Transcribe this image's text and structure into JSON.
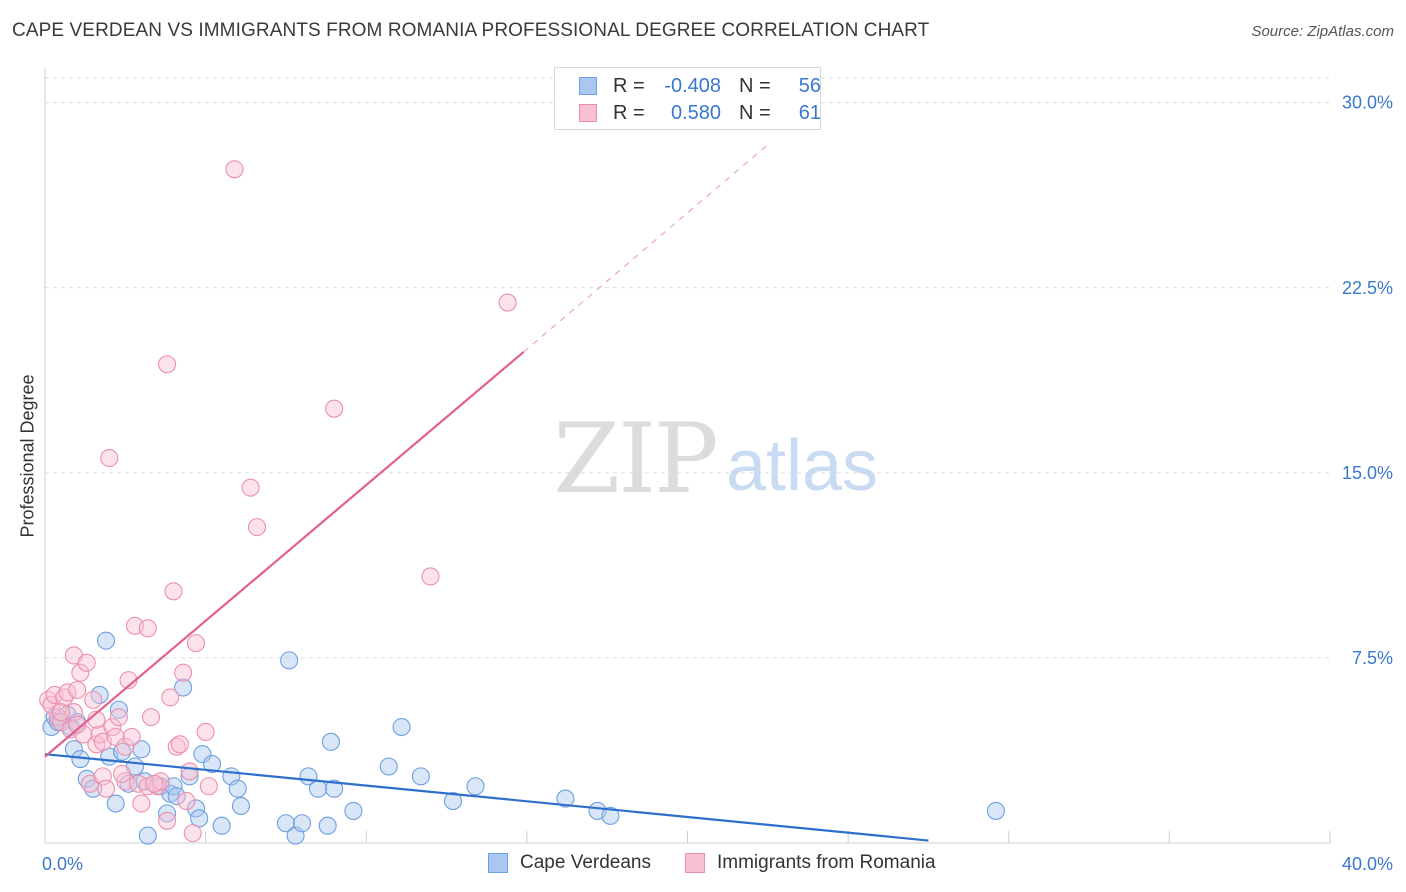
{
  "header": {
    "title": "CAPE VERDEAN VS IMMIGRANTS FROM ROMANIA PROFESSIONAL DEGREE CORRELATION CHART",
    "source": "Source: ZipAtlas.com"
  },
  "watermark": {
    "zip": "ZIP",
    "atlas": "atlas"
  },
  "stats_legend": {
    "rows": [
      {
        "r_label": "R =",
        "r_value": "-0.408",
        "n_label": "N =",
        "n_value": "56",
        "color": "#a9c7ef",
        "border": "#6e9fe0"
      },
      {
        "r_label": "R =",
        "r_value": "0.580",
        "n_label": "N =",
        "n_value": "61",
        "color": "#f8c0d2",
        "border": "#ec8fae"
      }
    ]
  },
  "chart_data": {
    "type": "scatter",
    "title": "CAPE VERDEAN VS IMMIGRANTS FROM ROMANIA PROFESSIONAL DEGREE CORRELATION CHART",
    "xlabel": "",
    "ylabel": "Professional Degree",
    "xlim": [
      0,
      40
    ],
    "ylim": [
      0,
      31
    ],
    "x_tick_labels": [
      {
        "value": 0,
        "label": "0.0%"
      },
      {
        "value": 40,
        "label": "40.0%"
      }
    ],
    "y_tick_labels": [
      {
        "value": 7.5,
        "label": "7.5%"
      },
      {
        "value": 15,
        "label": "15.0%"
      },
      {
        "value": 22.5,
        "label": "22.5%"
      },
      {
        "value": 30,
        "label": "30.0%"
      }
    ],
    "grid": true,
    "series": [
      {
        "name": "Cape Verdeans",
        "color": "#6e9fe0",
        "fill": "#a9c7ef",
        "line_color": "#2f6fcc",
        "trend": {
          "x": [
            0,
            27.5
          ],
          "y": [
            3.6,
            0.1
          ],
          "dashed_to": null
        },
        "points": [
          [
            0.2,
            4.7
          ],
          [
            0.3,
            5.1
          ],
          [
            0.5,
            4.9
          ],
          [
            0.7,
            5.2
          ],
          [
            0.8,
            4.7
          ],
          [
            0.9,
            3.8
          ],
          [
            1.0,
            4.9
          ],
          [
            1.1,
            3.4
          ],
          [
            1.3,
            2.6
          ],
          [
            1.5,
            2.2
          ],
          [
            1.7,
            6.0
          ],
          [
            1.9,
            8.2
          ],
          [
            2.0,
            3.5
          ],
          [
            2.2,
            1.6
          ],
          [
            2.3,
            5.4
          ],
          [
            2.4,
            3.7
          ],
          [
            2.6,
            2.4
          ],
          [
            2.8,
            3.1
          ],
          [
            3.0,
            3.8
          ],
          [
            3.1,
            2.5
          ],
          [
            3.2,
            0.3
          ],
          [
            3.6,
            2.3
          ],
          [
            3.8,
            1.2
          ],
          [
            3.9,
            2.0
          ],
          [
            4.0,
            2.3
          ],
          [
            4.1,
            1.9
          ],
          [
            4.3,
            6.3
          ],
          [
            4.5,
            2.7
          ],
          [
            4.7,
            1.4
          ],
          [
            4.8,
            1.0
          ],
          [
            4.9,
            3.6
          ],
          [
            5.2,
            3.2
          ],
          [
            5.5,
            0.7
          ],
          [
            5.8,
            2.7
          ],
          [
            6.0,
            2.2
          ],
          [
            6.1,
            1.5
          ],
          [
            7.5,
            0.8
          ],
          [
            7.6,
            7.4
          ],
          [
            7.8,
            0.3
          ],
          [
            8.0,
            0.8
          ],
          [
            8.2,
            2.7
          ],
          [
            8.5,
            2.2
          ],
          [
            8.8,
            0.7
          ],
          [
            8.9,
            4.1
          ],
          [
            9.0,
            2.2
          ],
          [
            9.6,
            1.3
          ],
          [
            10.7,
            3.1
          ],
          [
            11.1,
            4.7
          ],
          [
            11.7,
            2.7
          ],
          [
            12.7,
            1.7
          ],
          [
            13.4,
            2.3
          ],
          [
            16.2,
            1.8
          ],
          [
            17.2,
            1.3
          ],
          [
            17.6,
            1.1
          ],
          [
            29.6,
            1.3
          ],
          [
            0.4,
            4.9
          ]
        ]
      },
      {
        "name": "Immigrants from Romania",
        "color": "#ec8fae",
        "fill": "#f8c0d2",
        "line_color": "#e2608b",
        "trend": {
          "x": [
            0,
            14.9
          ],
          "y": [
            3.5,
            19.9
          ],
          "dashed_to": [
            22.5,
            28.3
          ]
        },
        "points": [
          [
            0.1,
            5.8
          ],
          [
            0.2,
            5.6
          ],
          [
            0.3,
            6.0
          ],
          [
            0.4,
            5.1
          ],
          [
            0.5,
            4.9
          ],
          [
            0.6,
            5.9
          ],
          [
            0.7,
            6.1
          ],
          [
            0.8,
            4.6
          ],
          [
            0.9,
            5.3
          ],
          [
            0.9,
            7.6
          ],
          [
            1.0,
            6.2
          ],
          [
            1.1,
            6.9
          ],
          [
            1.2,
            4.4
          ],
          [
            1.3,
            7.3
          ],
          [
            1.4,
            2.4
          ],
          [
            1.5,
            5.8
          ],
          [
            1.6,
            4.0
          ],
          [
            1.7,
            4.4
          ],
          [
            1.8,
            4.1
          ],
          [
            1.8,
            2.7
          ],
          [
            1.9,
            2.2
          ],
          [
            2.0,
            15.6
          ],
          [
            2.1,
            4.7
          ],
          [
            2.2,
            4.3
          ],
          [
            2.3,
            5.1
          ],
          [
            2.5,
            3.9
          ],
          [
            2.5,
            2.5
          ],
          [
            2.6,
            6.6
          ],
          [
            2.7,
            4.3
          ],
          [
            2.8,
            8.8
          ],
          [
            2.9,
            2.4
          ],
          [
            3.0,
            1.6
          ],
          [
            3.2,
            2.3
          ],
          [
            3.2,
            8.7
          ],
          [
            3.3,
            5.1
          ],
          [
            3.5,
            2.3
          ],
          [
            3.6,
            2.5
          ],
          [
            3.8,
            0.9
          ],
          [
            3.8,
            19.4
          ],
          [
            3.9,
            5.9
          ],
          [
            4.0,
            10.2
          ],
          [
            4.1,
            3.9
          ],
          [
            4.2,
            4.0
          ],
          [
            4.3,
            6.9
          ],
          [
            4.4,
            1.7
          ],
          [
            4.5,
            2.9
          ],
          [
            4.6,
            0.4
          ],
          [
            4.7,
            8.1
          ],
          [
            5.0,
            4.5
          ],
          [
            5.1,
            2.3
          ],
          [
            5.9,
            27.3
          ],
          [
            6.4,
            14.4
          ],
          [
            6.6,
            12.8
          ],
          [
            9.0,
            17.6
          ],
          [
            12.0,
            10.8
          ],
          [
            14.4,
            21.9
          ],
          [
            0.5,
            5.3
          ],
          [
            1.0,
            4.8
          ],
          [
            1.6,
            5.0
          ],
          [
            2.4,
            2.8
          ],
          [
            3.4,
            2.4
          ]
        ]
      }
    ]
  },
  "bottom_legend": {
    "items": [
      {
        "label": "Cape Verdeans",
        "color": "#a9c7ef",
        "border": "#6e9fe0"
      },
      {
        "label": "Immigrants from Romania",
        "color": "#f8c0d2",
        "border": "#ec8fae"
      }
    ]
  }
}
